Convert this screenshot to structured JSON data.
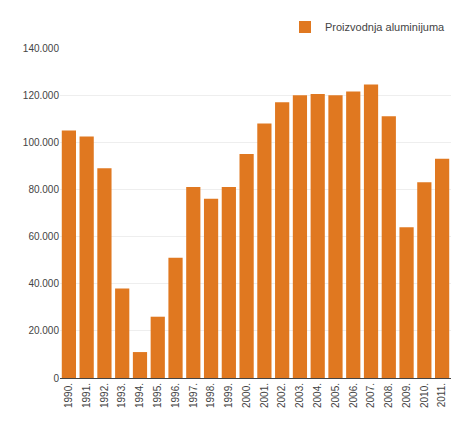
{
  "chart_data": {
    "type": "bar",
    "categories": [
      "1990.",
      "1991.",
      "1992.",
      "1993.",
      "1994.",
      "1995.",
      "1996.",
      "1997.",
      "1998.",
      "1999.",
      "2000.",
      "2001.",
      "2002.",
      "2003.",
      "2004.",
      "2005.",
      "2006.",
      "2007.",
      "2008.",
      "2009.",
      "2010.",
      "2011."
    ],
    "series": [
      {
        "name": "Proizvodnja aluminijuma",
        "color": "#E07820",
        "values": [
          105000,
          102500,
          89000,
          38000,
          11000,
          26000,
          51000,
          81000,
          76000,
          81000,
          95000,
          108000,
          117000,
          120000,
          120500,
          120000,
          121500,
          124500,
          111000,
          64000,
          83000,
          93000
        ]
      }
    ],
    "ylim": [
      0,
      140000
    ],
    "yticks": [
      0,
      {
        "value": 20000,
        "label": "20.000"
      },
      {
        "value": 40000,
        "label": "40.000"
      },
      {
        "value": 60000,
        "label": "60.000"
      },
      {
        "value": 80000,
        "label": "80.000"
      },
      {
        "value": 100000,
        "label": "100.000"
      },
      {
        "value": 120000,
        "label": "120.000"
      },
      {
        "value": 140000,
        "label": "140.000"
      }
    ],
    "grid": true,
    "legend": "upper right"
  }
}
